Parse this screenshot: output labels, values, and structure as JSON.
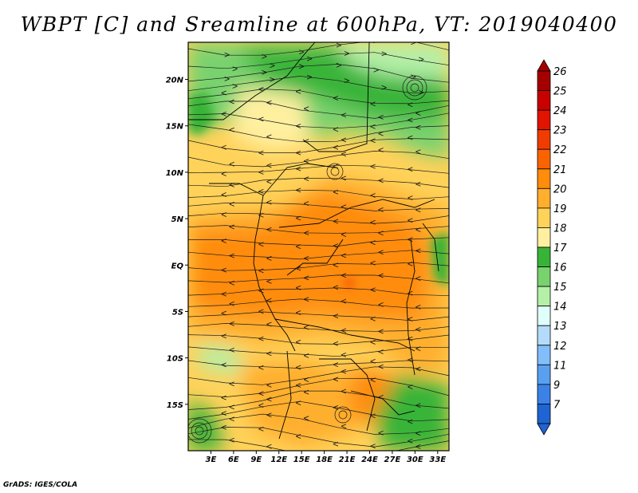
{
  "title": "WBPT [C] and Sreamline at 600hPa, VT: 2019040400",
  "credit": "GrADS: IGES/COLA",
  "map": {
    "lat_ticks": [
      {
        "label": "20N",
        "lat": 20
      },
      {
        "label": "15N",
        "lat": 15
      },
      {
        "label": "10N",
        "lat": 10
      },
      {
        "label": "5N",
        "lat": 5
      },
      {
        "label": "EQ",
        "lat": 0
      },
      {
        "label": "5S",
        "lat": -5
      },
      {
        "label": "10S",
        "lat": -10
      },
      {
        "label": "15S",
        "lat": -15
      }
    ],
    "lon_ticks": [
      {
        "label": "3E",
        "lon": 3
      },
      {
        "label": "6E",
        "lon": 6
      },
      {
        "label": "9E",
        "lon": 9
      },
      {
        "label": "12E",
        "lon": 12
      },
      {
        "label": "15E",
        "lon": 15
      },
      {
        "label": "18E",
        "lon": 18
      },
      {
        "label": "21E",
        "lon": 21
      },
      {
        "label": "24E",
        "lon": 24
      },
      {
        "label": "27E",
        "lon": 27
      },
      {
        "label": "30E",
        "lon": 30
      },
      {
        "label": "33E",
        "lon": 33
      }
    ],
    "lat_range": [
      -20,
      24
    ],
    "lon_range": [
      0,
      34.5
    ]
  },
  "colorbar": {
    "levels": [
      {
        "label": "26",
        "color": "#a50000"
      },
      {
        "label": "25",
        "color": "#c80000"
      },
      {
        "label": "24",
        "color": "#e11400"
      },
      {
        "label": "23",
        "color": "#f03c00"
      },
      {
        "label": "22",
        "color": "#fa6400"
      },
      {
        "label": "21",
        "color": "#ff8c0a"
      },
      {
        "label": "20",
        "color": "#ffaf2d"
      },
      {
        "label": "19",
        "color": "#ffd25a"
      },
      {
        "label": "18",
        "color": "#fff0a0"
      },
      {
        "label": "17",
        "color": "#37b437"
      },
      {
        "label": "16",
        "color": "#78d26e"
      },
      {
        "label": "15",
        "color": "#b4f0a8"
      },
      {
        "label": "14",
        "color": "#e1fffa"
      },
      {
        "label": "13",
        "color": "#b4dcfa"
      },
      {
        "label": "12",
        "color": "#82befa"
      },
      {
        "label": "11",
        "color": "#5aa0f0"
      },
      {
        "label": "9",
        "color": "#3c82e6"
      },
      {
        "label": "7",
        "color": "#1e64d2"
      }
    ]
  }
}
